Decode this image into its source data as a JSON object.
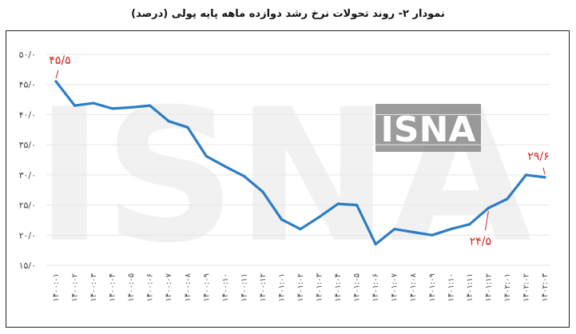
{
  "title": "نمودار ۲- روند تحولات نرخ رشد دوازده ماهه پایه پولی (درصد)",
  "watermark": "ISNA",
  "colors": {
    "line": "#2e7dc3",
    "annotation": "#d62020",
    "grid": "#e6e6e6",
    "axis_text": "#444444"
  },
  "chart_data": {
    "type": "line",
    "title": "نمودار ۲- روند تحولات نرخ رشد دوازده ماهه پایه پولی (درصد)",
    "xlabel": "",
    "ylabel": "",
    "ylim": [
      15,
      50
    ],
    "yticks": [
      {
        "value": 15,
        "label": "۱۵/۰"
      },
      {
        "value": 20,
        "label": "۲۰/۰"
      },
      {
        "value": 25,
        "label": "۲۵/۰"
      },
      {
        "value": 30,
        "label": "۳۰/۰"
      },
      {
        "value": 35,
        "label": "۳۵/۰"
      },
      {
        "value": 40,
        "label": "۴۰/۰"
      },
      {
        "value": 45,
        "label": "۴۵/۰"
      },
      {
        "value": 50,
        "label": "۵۰/۰"
      }
    ],
    "grid": true,
    "legend": "none",
    "categories": [
      "۱۴۰۰:۰۱",
      "۱۴۰۰:۰۲",
      "۱۴۰۰:۰۳",
      "۱۴۰۰:۰۴",
      "۱۴۰۰:۰۵",
      "۱۴۰۰:۰۶",
      "۱۴۰۰:۰۷",
      "۱۴۰۰:۰۸",
      "۱۴۰۰:۰۹",
      "۱۴۰۰:۱۰",
      "۱۴۰۰:۱۱",
      "۱۴۰۰:۱۲",
      "۱۴۰۱:۰۱",
      "۱۴۰۱:۰۲",
      "۱۴۰۱:۰۳",
      "۱۴۰۱:۰۴",
      "۱۴۰۱:۰۵",
      "۱۴۰۱:۰۶",
      "۱۴۰۱:۰۷",
      "۱۴۰۱:۰۸",
      "۱۴۰۱:۰۹",
      "۱۴۰۱:۱۰",
      "۱۴۰۱:۱۱",
      "۱۴۰۱:۱۲",
      "۱۴۰۲:۰۱",
      "۱۴۰۲:۰۲",
      "۱۴۰۲:۰۳"
    ],
    "series": [
      {
        "values": [
          45.5,
          41.5,
          41.9,
          41.0,
          41.2,
          41.5,
          38.9,
          37.9,
          33.1,
          31.4,
          29.8,
          27.2,
          22.6,
          21.0,
          23.0,
          25.2,
          25.0,
          18.5,
          21.0,
          20.5,
          20.0,
          21.0,
          21.8,
          24.5,
          26.0,
          30.0,
          29.6
        ]
      }
    ],
    "annotations": [
      {
        "index": 0,
        "label": "۴۵/۵"
      },
      {
        "index": 23,
        "label": "۲۴/۵"
      },
      {
        "index": 26,
        "label": "۲۹/۶"
      }
    ]
  }
}
